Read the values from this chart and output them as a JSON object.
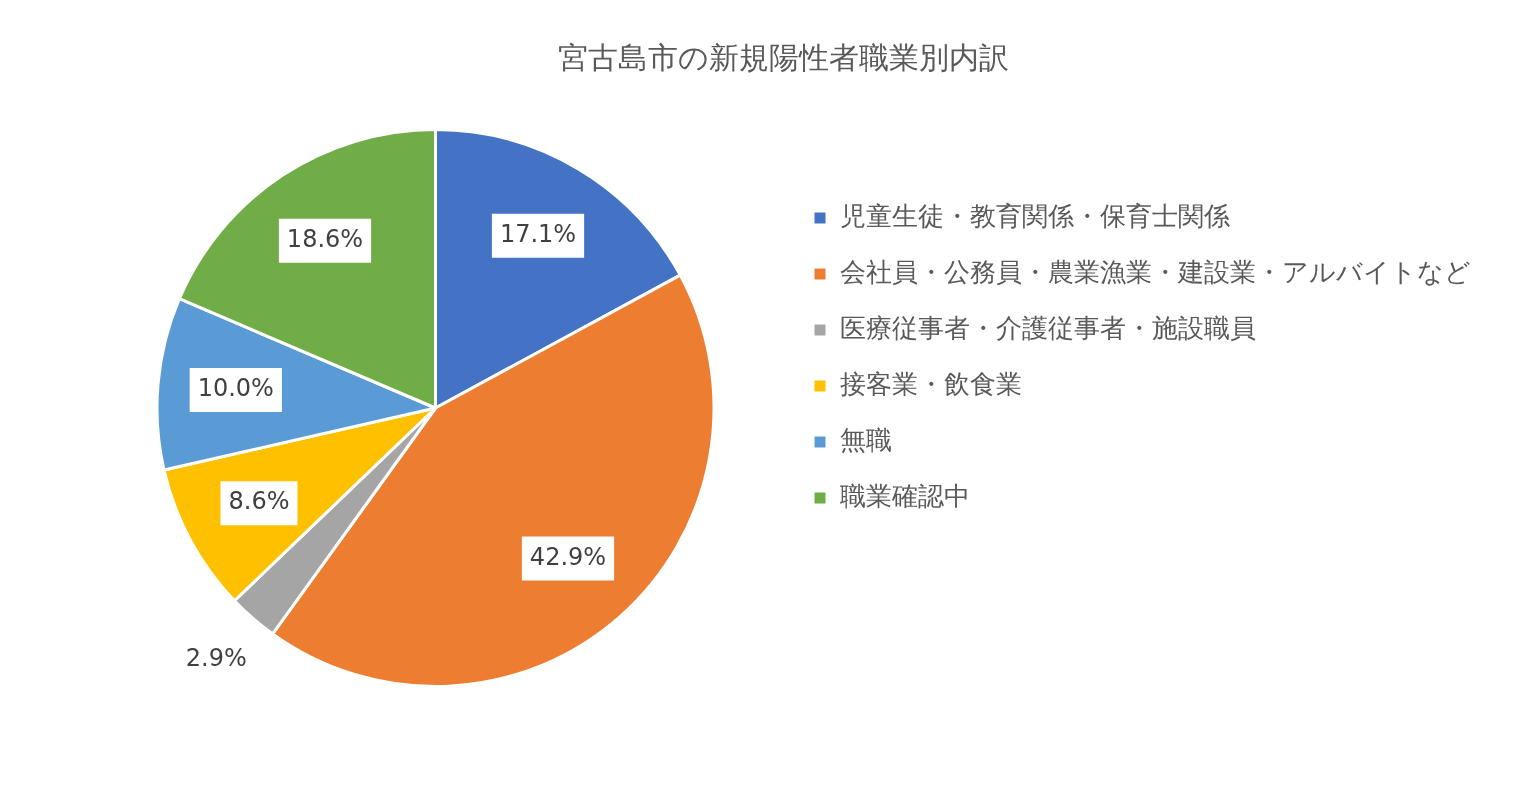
{
  "chart_data": {
    "type": "pie",
    "title": "宮古島市の新規陽性者職業別内訳",
    "categories": [
      "児童生徒・教育関係・保育士関係",
      "会社員・公務員・農業漁業・建設業・アルバイトなど",
      "医療従事者・介護従事者・施設職員",
      "接客業・飲食業",
      "無職",
      "職業確認中"
    ],
    "values": [
      17.1,
      42.9,
      2.9,
      8.6,
      10.0,
      18.6
    ],
    "colors": [
      "#4472c4",
      "#ed7d31",
      "#a5a5a5",
      "#ffc000",
      "#5b9bd5",
      "#70ad47"
    ],
    "value_labels": [
      "17.1%",
      "42.9%",
      "2.9%",
      "8.6%",
      "10.0%",
      "18.6%"
    ],
    "legend": "right"
  }
}
